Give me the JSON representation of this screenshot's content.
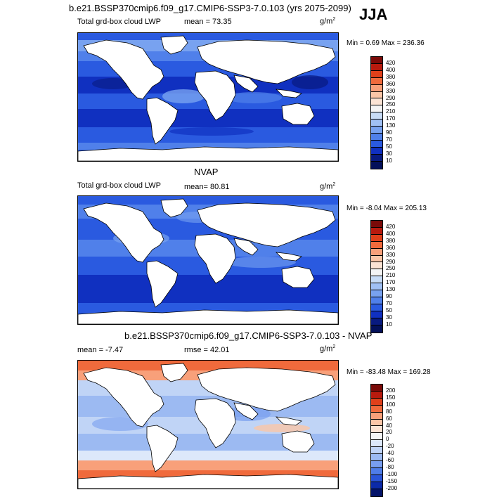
{
  "season": "JJA",
  "panels": [
    {
      "title": "b.e21.BSSP370cmip6.f09_g17.CMIP6-SSP3-7.0.103 (yrs 2075-2099)",
      "left_label": "Total grd-box cloud LWP",
      "stat": "mean =  73.35",
      "units": "g/m",
      "units_sup": "2",
      "minmax": "Min =   0.69 Max = 236.36",
      "colorbar": {
        "labels": [
          "420",
          "400",
          "380",
          "360",
          "330",
          "290",
          "250",
          "210",
          "170",
          "130",
          "90",
          "70",
          "50",
          "30",
          "10"
        ],
        "colors": [
          "#7a0a08",
          "#b81a0e",
          "#e0401a",
          "#f06a3c",
          "#f8a07a",
          "#fac6a8",
          "#fbe3d4",
          "#f4f4f4",
          "#c8dcf6",
          "#a0c0f4",
          "#78a2f0",
          "#5080ea",
          "#2a5ae0",
          "#1030c0",
          "#081a80",
          "#03105a"
        ]
      },
      "field": "lwp_model"
    },
    {
      "title": "NVAP",
      "left_label": "Total grd-box cloud LWP",
      "stat": "mean=  80.81",
      "units": "g/m",
      "units_sup": "2",
      "minmax": "Min =  -8.04 Max = 205.13",
      "colorbar": {
        "labels": [
          "420",
          "400",
          "380",
          "360",
          "330",
          "290",
          "250",
          "210",
          "170",
          "130",
          "90",
          "70",
          "50",
          "30",
          "10"
        ],
        "colors": [
          "#7a0a08",
          "#b81a0e",
          "#e0401a",
          "#f06a3c",
          "#f8a07a",
          "#fac6a8",
          "#fbe3d4",
          "#f4f4f4",
          "#c8dcf6",
          "#a0c0f4",
          "#78a2f0",
          "#5080ea",
          "#2a5ae0",
          "#1030c0",
          "#081a80",
          "#03105a"
        ]
      },
      "field": "lwp_obs"
    },
    {
      "title": "b.e21.BSSP370cmip6.f09_g17.CMIP6-SSP3-7.0.103 - NVAP",
      "left_label": "mean =  -7.47",
      "stat": "rmse =  42.01",
      "units": "g/m",
      "units_sup": "2",
      "minmax": "Min = -83.48 Max = 169.28",
      "colorbar": {
        "labels": [
          "200",
          "150",
          "100",
          "80",
          "60",
          "40",
          "20",
          "0",
          "-20",
          "-40",
          "-60",
          "-80",
          "-100",
          "-150",
          "-200"
        ],
        "colors": [
          "#7a0a08",
          "#b81a0e",
          "#e0401a",
          "#f06a3c",
          "#f8a07a",
          "#fac6a8",
          "#fbe3d4",
          "#f4f4f4",
          "#dde8fa",
          "#c0d4f6",
          "#9cbaf2",
          "#789ef0",
          "#4f7de8",
          "#2a55d8",
          "#0c2aa8",
          "#04146a"
        ]
      },
      "field": "lwp_diff"
    }
  ]
}
